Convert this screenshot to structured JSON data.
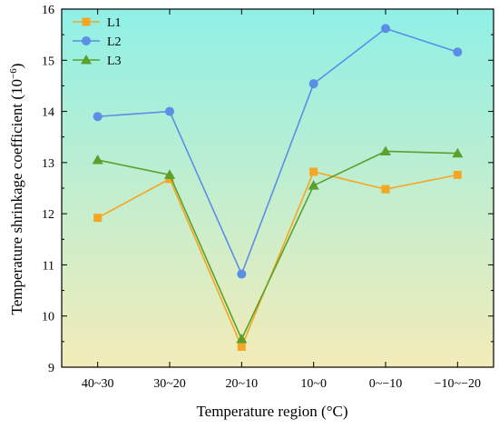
{
  "chart_data": {
    "type": "line",
    "title": "",
    "xlabel": "Temperature region (°C)",
    "ylabel_main": "Temperature shrinkage coefficient (10",
    "ylabel_exp": "−6",
    "ylabel_close": ")",
    "categories": [
      "40~30",
      "30~20",
      "20~10",
      "10~0",
      "0~−10",
      "−10~−20"
    ],
    "ylim": [
      9,
      16
    ],
    "yticks": [
      9,
      10,
      11,
      12,
      13,
      14,
      15,
      16
    ],
    "series": [
      {
        "name": "L1",
        "color": "#f5a623",
        "marker": "square",
        "values": [
          11.92,
          12.68,
          9.4,
          12.82,
          12.48,
          12.76
        ]
      },
      {
        "name": "L2",
        "color": "#5b8ee6",
        "marker": "circle",
        "values": [
          13.9,
          14.0,
          10.82,
          14.54,
          15.62,
          15.16
        ]
      },
      {
        "name": "L3",
        "color": "#5aa02c",
        "marker": "triangle",
        "values": [
          13.05,
          12.76,
          9.55,
          12.55,
          13.22,
          13.18
        ]
      }
    ],
    "legend_position": "top-left",
    "background_gradient": [
      "#8ff0e6",
      "#f3ecb8"
    ],
    "grid": false
  }
}
